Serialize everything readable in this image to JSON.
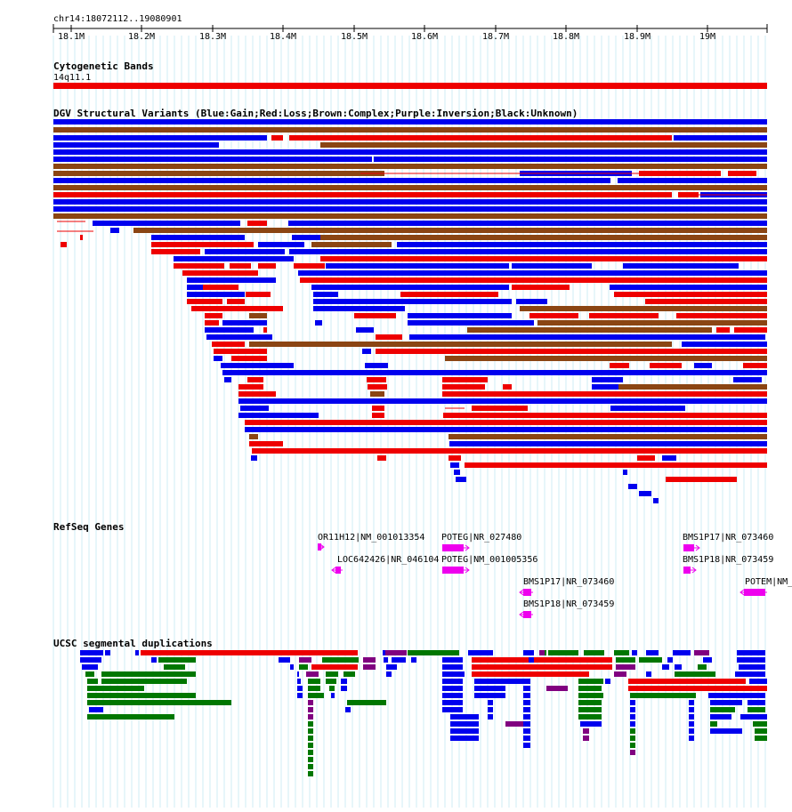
{
  "location": "chr14:18072112..19080901",
  "ruler": {
    "ticks": [
      "18.1M",
      "18.2M",
      "18.3M",
      "18.4M",
      "18.5M",
      "18.6M",
      "18.7M",
      "18.8M",
      "18.9M",
      "19M"
    ]
  },
  "tracks": {
    "cytobands": {
      "title": "Cytogenetic Bands",
      "band_label": "14q11.1",
      "band_color": "#ee0000"
    },
    "dgv": {
      "title": "DGV Structural Variants (Blue:Gain;Red:Loss;Brown:Complex;Purple:Inversion;Black:Unknown)",
      "colors": {
        "gain": "#0000ee",
        "loss": "#ee0000",
        "complex": "#8b4513",
        "inversion": "#800080",
        "unknown": "#000000"
      }
    },
    "refseq": {
      "title": "RefSeq Genes",
      "color": "#ee00ee",
      "genes": [
        {
          "label": "OR11H12|NM_001013354",
          "strand": "+"
        },
        {
          "label": "POTEG|NR_027480",
          "strand": "+"
        },
        {
          "label": "BMS1P17|NR_073460",
          "strand": "+"
        },
        {
          "label": "LOC642426|NR_046104",
          "strand": "-"
        },
        {
          "label": "POTEG|NM_001005356",
          "strand": "+"
        },
        {
          "label": "BMS1P18|NR_073459",
          "strand": "+"
        },
        {
          "label": "BMS1P17|NR_073460",
          "strand": "-"
        },
        {
          "label": "POTEM|NM_",
          "strand": "-"
        },
        {
          "label": "BMS1P18|NR_073459",
          "strand": "-"
        }
      ]
    },
    "segdups": {
      "title": "UCSC segmental duplications",
      "colors": {
        "blue": "#0000ee",
        "red": "#ee0000",
        "green": "#007700",
        "purple": "#800080"
      }
    }
  }
}
